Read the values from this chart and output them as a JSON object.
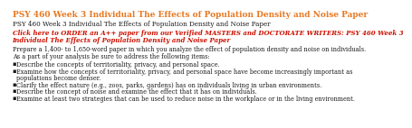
{
  "title": "PSY 460 Week 3 Individual The Effects of Population Density and Noise Paper",
  "subtitle": "PSY 460 Week 3 Individual The Effects of Population Density and Noise Paper",
  "link_line1": "Click here to ORDER an A++ paper from our Verified MASTERS and DOCTORATE WRITERS: PSY 460 Week 3",
  "link_line2": "Individual The Effects of Population Density and Noise Paper",
  "body_line1": "Prepare a 1,400- to 1,650-word paper in which you analyze the effect of population density and noise on individuals.",
  "body_line2": "As a part of your analysis be sure to address the following items:",
  "bullets": [
    "Describe the concepts of territoriality, privacy, and personal space.",
    "Examine how the concepts of territoriality, privacy, and personal space have become increasingly important as\npopulations become denser.",
    "Clarify the effect nature (e.g., zoos, parks, gardens) has on individuals living in urban environments.",
    "Describe the concept of noise and examine the effect that it has on individuals.",
    "Examine at least two strategies that can be used to reduce noise in the workplace or in the living environment."
  ],
  "title_color": "#e87820",
  "subtitle_color": "#1a1a1a",
  "link_color": "#cc1100",
  "body_color": "#1a1a1a",
  "bg_color": "#ffffff",
  "title_fontsize": 6.5,
  "subtitle_fontsize": 5.2,
  "link_fontsize": 5.0,
  "body_fontsize": 4.7,
  "bullet_fontsize": 4.7,
  "bullet_marker": "▪"
}
